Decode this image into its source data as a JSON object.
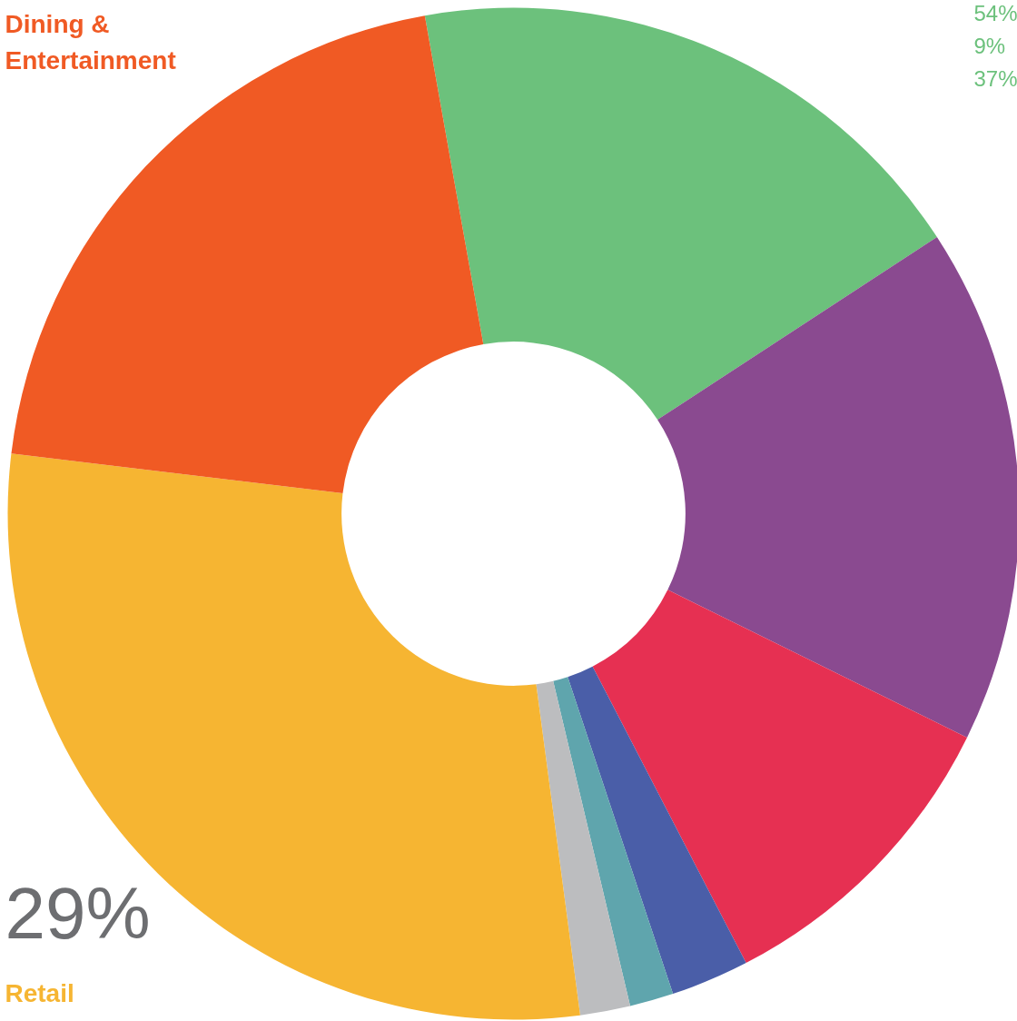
{
  "chart_data": {
    "type": "donut",
    "categories": [
      null,
      null,
      null,
      null,
      null,
      null,
      "Retail",
      "Dining & Entertainment"
    ],
    "values": [
      18.6,
      16.5,
      10.1,
      2.5,
      1.4,
      1.6,
      29.0,
      20.3
    ],
    "colors": [
      "#6cc17c",
      "#8a4a90",
      "#e63052",
      "#4a5ea8",
      "#5fa5ad",
      "#bcbdbf",
      "#f6b532",
      "#f05a24"
    ],
    "value_labels": [
      null,
      null,
      null,
      null,
      null,
      null,
      "29%",
      null
    ],
    "annotations": [
      "54%",
      "9%",
      "37%"
    ]
  }
}
